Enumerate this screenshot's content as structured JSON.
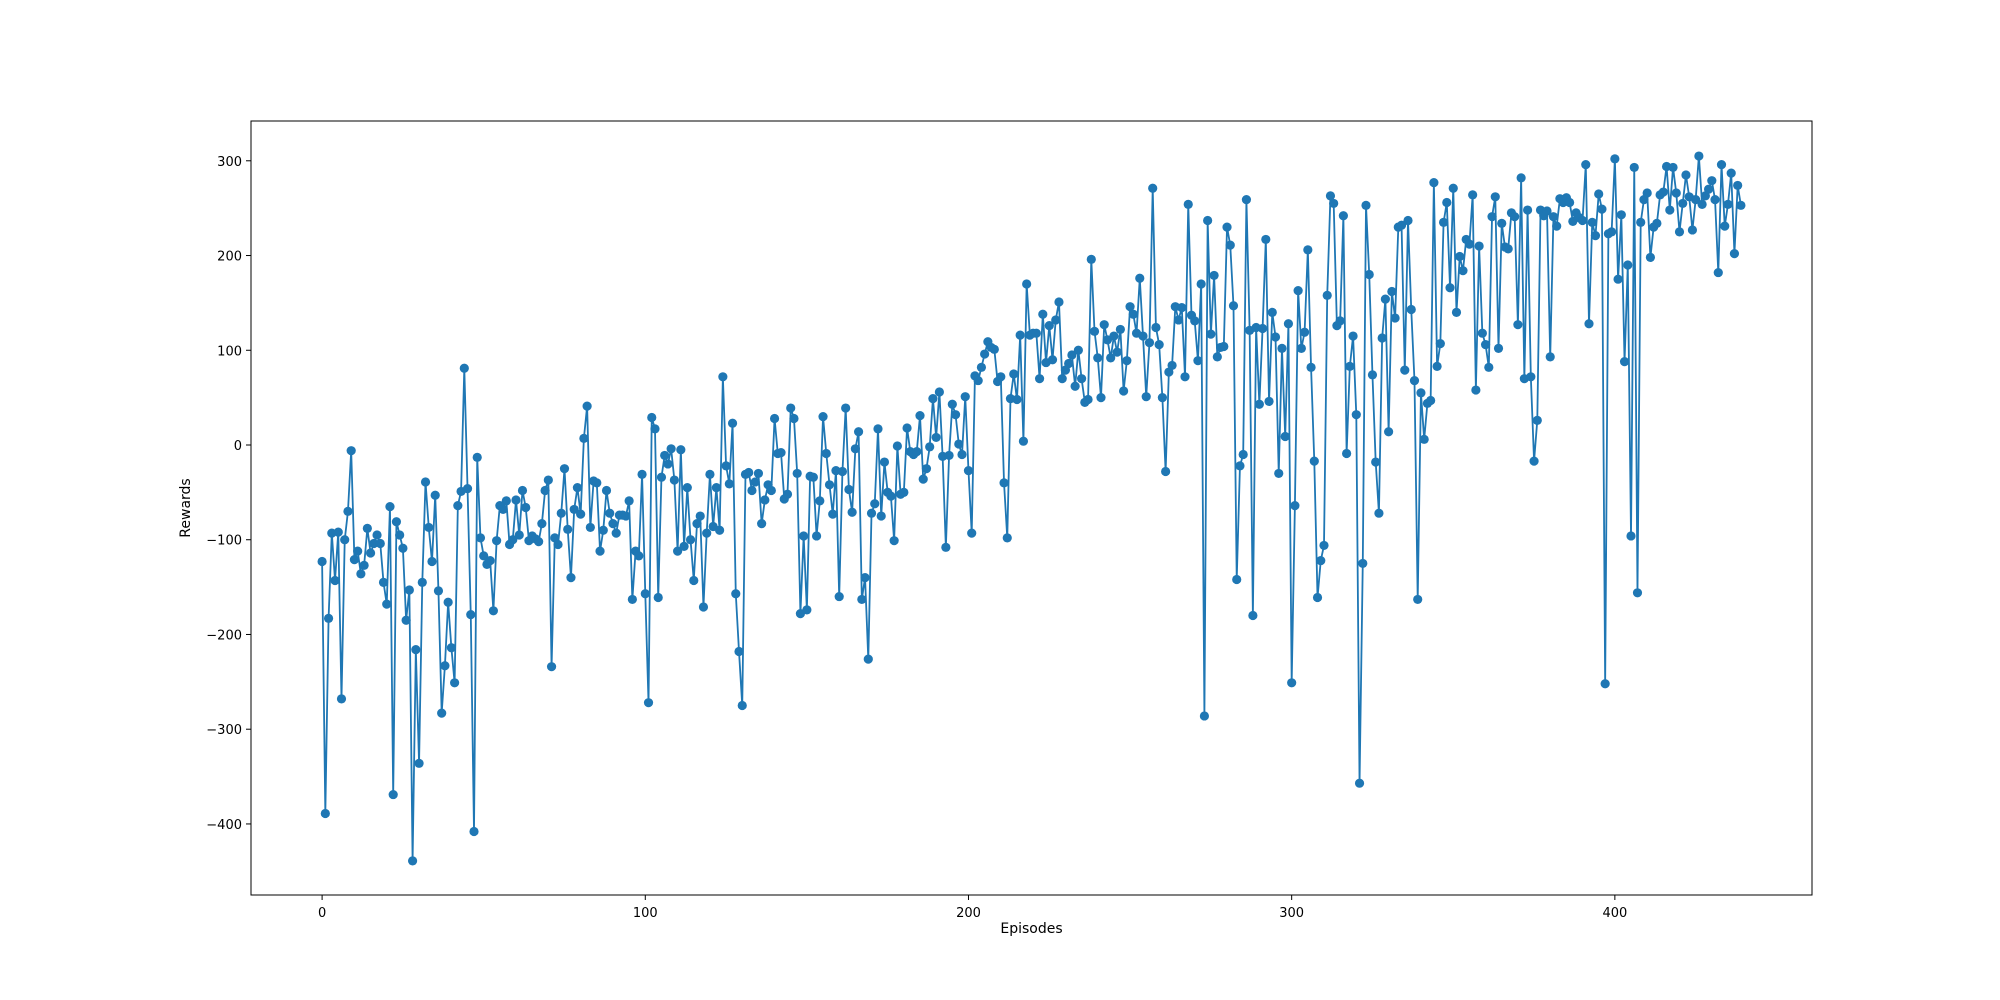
{
  "chart_data": {
    "type": "line",
    "title": "",
    "xlabel": "Episodes",
    "ylabel": "Rewards",
    "xlim": [
      -22,
      461
    ],
    "ylim": [
      -475,
      342
    ],
    "xticks": [
      0,
      100,
      200,
      300,
      400
    ],
    "yticks": [
      -400,
      -300,
      -200,
      -100,
      0,
      100,
      200,
      300
    ],
    "xtick_labels": [
      "0",
      "100",
      "200",
      "300",
      "400"
    ],
    "ytick_labels": [
      "−400",
      "−300",
      "−200",
      "−100",
      "0",
      "100",
      "200",
      "300"
    ],
    "grid": false,
    "marker": "circle",
    "color": "#1f77b4",
    "series": [
      {
        "values": [
          -123,
          -389,
          -183,
          -93,
          -143,
          -92,
          -268,
          -100,
          -70,
          -6,
          -121,
          -112,
          -136,
          -127,
          -88,
          -114,
          -104,
          -95,
          -104,
          -145,
          -168,
          -65,
          -369,
          -81,
          -95,
          -109,
          -185,
          -153,
          -439,
          -216,
          -336,
          -145,
          -39,
          -87,
          -123,
          -53,
          -154,
          -283,
          -233,
          -166,
          -214,
          -251,
          -64,
          -49,
          81,
          -46,
          -179,
          -408,
          -13,
          -98,
          -117,
          -126,
          -122,
          -175,
          -101,
          -64,
          -68,
          -59,
          -105,
          -100,
          -58,
          -95,
          -48,
          -66,
          -101,
          -96,
          -99,
          -102,
          -83,
          -48,
          -37,
          -234,
          -98,
          -105,
          -72,
          -25,
          -89,
          -140,
          -68,
          -45,
          -73,
          7,
          41,
          -87,
          -38,
          -40,
          -112,
          -90,
          -48,
          -72,
          -83,
          -93,
          -74,
          -74,
          -75,
          -59,
          -163,
          -112,
          -117,
          -31,
          -157,
          -272,
          29,
          17,
          -161,
          -34,
          -11,
          -20,
          -4,
          -37,
          -112,
          -5,
          -107,
          -45,
          -100,
          -143,
          -83,
          -75,
          -171,
          -93,
          -31,
          -86,
          -45,
          -90,
          72,
          -22,
          -41,
          23,
          -157,
          -218,
          -275,
          -31,
          -29,
          -48,
          -39,
          -30,
          -83,
          -58,
          -42,
          -48,
          28,
          -9,
          -8,
          -57,
          -52,
          39,
          28,
          -30,
          -178,
          -96,
          -174,
          -33,
          -34,
          -96,
          -59,
          30,
          -9,
          -42,
          -73,
          -27,
          -160,
          -28,
          39,
          -47,
          -71,
          -4,
          14,
          -163,
          -140,
          -226,
          -72,
          -62,
          17,
          -75,
          -18,
          -50,
          -54,
          -101,
          -1,
          -52,
          -50,
          18,
          -7,
          -10,
          -7,
          31,
          -36,
          -25,
          -2,
          49,
          8,
          56,
          -12,
          -108,
          -11,
          43,
          32,
          1,
          -10,
          51,
          -27,
          -93,
          73,
          68,
          82,
          96,
          109,
          103,
          101,
          67,
          72,
          -40,
          -98,
          49,
          75,
          48,
          116,
          4,
          170,
          116,
          118,
          118,
          70,
          138,
          87,
          126,
          90,
          132,
          151,
          70,
          79,
          86,
          95,
          62,
          100,
          70,
          45,
          48,
          196,
          120,
          92,
          50,
          127,
          111,
          92,
          115,
          98,
          122,
          57,
          89,
          146,
          138,
          118,
          176,
          115,
          51,
          108,
          271,
          124,
          106,
          50,
          -28,
          77,
          84,
          146,
          132,
          145,
          72,
          254,
          137,
          131,
          89,
          170,
          -286,
          237,
          117,
          179,
          93,
          103,
          104,
          230,
          211,
          147,
          -142,
          -22,
          -10,
          259,
          121,
          -180,
          124,
          43,
          123,
          217,
          46,
          140,
          114,
          -30,
          102,
          9,
          128,
          -251,
          -64,
          163,
          102,
          119,
          206,
          82,
          -17,
          -161,
          -122,
          -106,
          158,
          263,
          255,
          126,
          131,
          242,
          -9,
          83,
          115,
          32,
          -357,
          -125,
          253,
          180,
          74,
          -18,
          -72,
          113,
          154,
          14,
          162,
          134,
          230,
          232,
          79,
          237,
          143,
          68,
          -163,
          55,
          6,
          44,
          47,
          277,
          83,
          107,
          235,
          256,
          166,
          271,
          140,
          199,
          184,
          217,
          212,
          264,
          58,
          210,
          118,
          106,
          82,
          241,
          262,
          102,
          234,
          209,
          207,
          245,
          241,
          127,
          282,
          70,
          248,
          72,
          -17,
          26,
          248,
          242,
          247,
          93,
          241,
          231,
          260,
          256,
          261,
          256,
          236,
          245,
          240,
          237,
          296,
          128,
          235,
          221,
          265,
          249,
          -252,
          223,
          225,
          302,
          175,
          243,
          88,
          190,
          -96,
          293,
          -156,
          235,
          259,
          266,
          198,
          230,
          234,
          264,
          267,
          294,
          248,
          293,
          266,
          225,
          255,
          285,
          262,
          227,
          259,
          305,
          254,
          263,
          270,
          279,
          259,
          182,
          296,
          231,
          254,
          287,
          202,
          274,
          253
        ]
      }
    ]
  }
}
